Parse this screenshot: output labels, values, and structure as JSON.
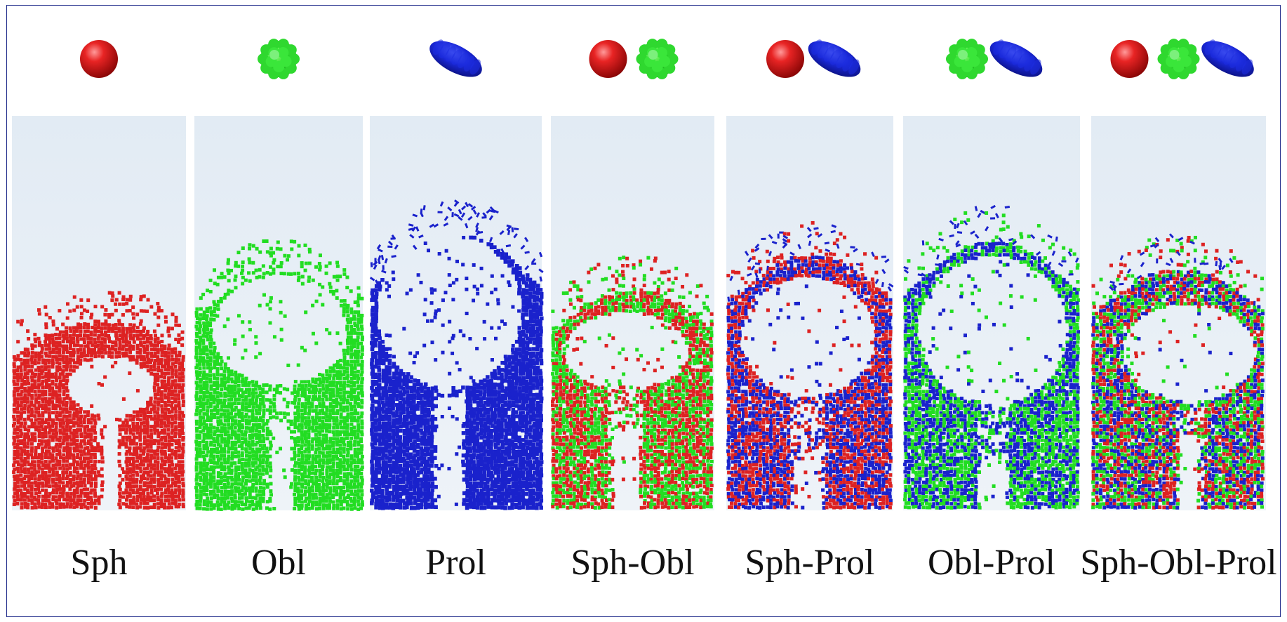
{
  "panels": [
    {
      "label": "Sph",
      "shapes": [
        "sphere"
      ],
      "colors": [
        "#dd2222"
      ]
    },
    {
      "label": "Obl",
      "shapes": [
        "oblate"
      ],
      "colors": [
        "#22dd22"
      ]
    },
    {
      "label": "Prol",
      "shapes": [
        "prolate"
      ],
      "colors": [
        "#1a22cc"
      ]
    },
    {
      "label": "Sph-Obl",
      "shapes": [
        "sphere",
        "oblate"
      ],
      "colors": [
        "#dd2222",
        "#22dd22"
      ]
    },
    {
      "label": "Sph-Prol",
      "shapes": [
        "sphere",
        "prolate"
      ],
      "colors": [
        "#dd2222",
        "#1a22cc"
      ]
    },
    {
      "label": "Obl-Prol",
      "shapes": [
        "oblate",
        "prolate"
      ],
      "colors": [
        "#22dd22",
        "#1a22cc"
      ]
    },
    {
      "label": "Sph-Obl-Prol",
      "shapes": [
        "sphere",
        "oblate",
        "prolate"
      ],
      "colors": [
        "#dd2222",
        "#22dd22",
        "#1a22cc"
      ]
    }
  ],
  "style": {
    "background_top": "#e2ebf4",
    "background_bottom": "#edf2f7",
    "border": "#1f2a8a"
  }
}
